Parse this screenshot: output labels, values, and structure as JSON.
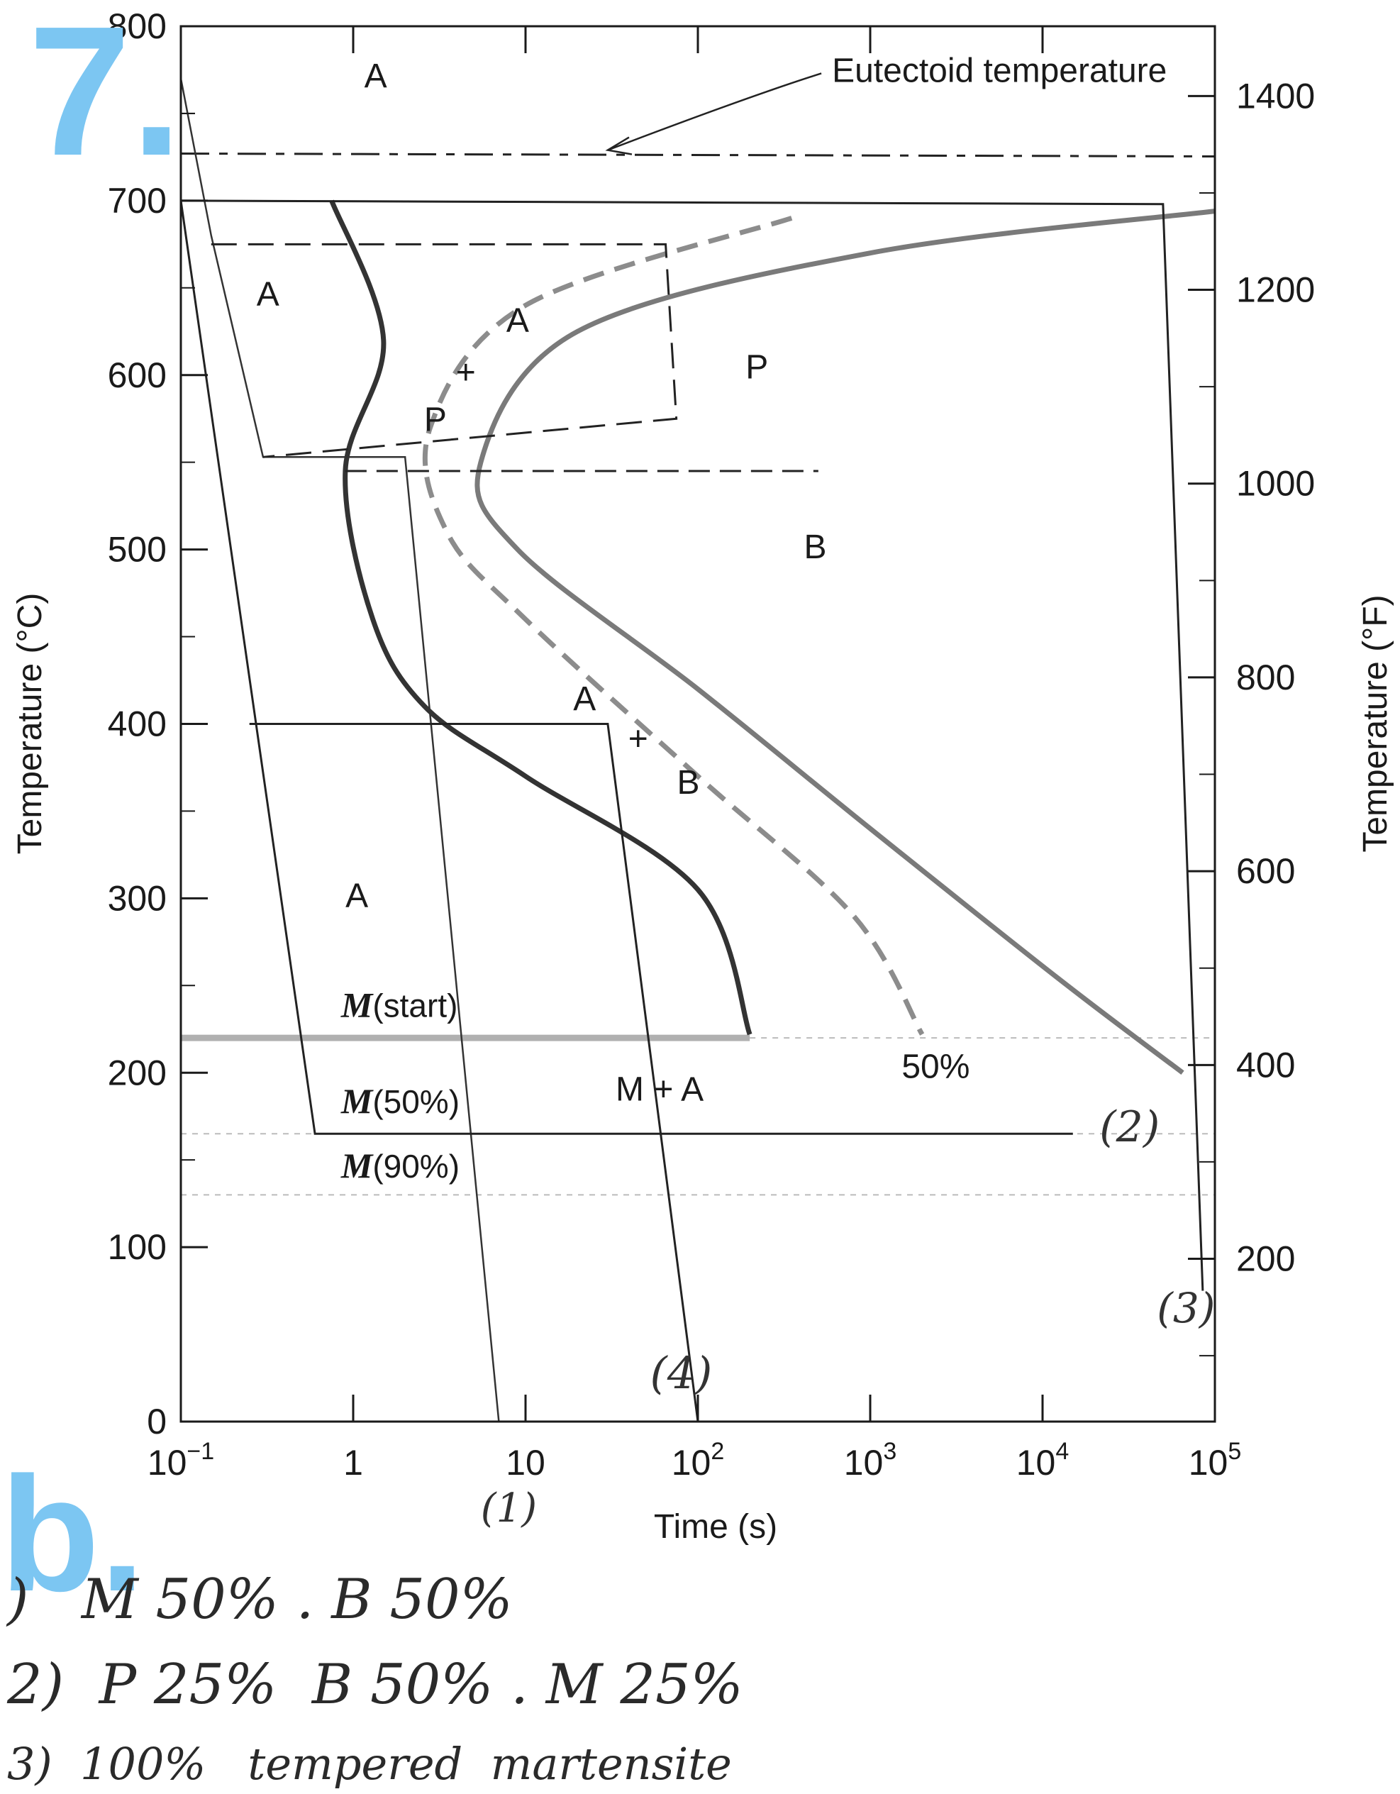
{
  "chart_data": {
    "type": "line",
    "x_axis": {
      "label": "Time (s)",
      "scale": "log",
      "range": [
        0.1,
        100000
      ],
      "ticks": [
        {
          "value": 0.1,
          "base": "10",
          "exp": "−1"
        },
        {
          "value": 1,
          "text": "1"
        },
        {
          "value": 10,
          "text": "10"
        },
        {
          "value": 100,
          "base": "10",
          "exp": "2"
        },
        {
          "value": 1000,
          "base": "10",
          "exp": "3"
        },
        {
          "value": 10000,
          "base": "10",
          "exp": "4"
        },
        {
          "value": 100000,
          "base": "10",
          "exp": "5"
        }
      ]
    },
    "y_axis_left": {
      "label": "Temperature (°C)",
      "range": [
        0,
        800
      ],
      "ticks": [
        "0",
        "100",
        "200",
        "300",
        "400",
        "500",
        "600",
        "700",
        "800"
      ]
    },
    "y_axis_right": {
      "label": "Temperature (°F)",
      "ticks": [
        {
          "value": 200,
          "text": "200"
        },
        {
          "value": 400,
          "text": "400"
        },
        {
          "value": 600,
          "text": "600"
        },
        {
          "value": 800,
          "text": "800"
        },
        {
          "value": 1000,
          "text": "1000"
        },
        {
          "value": 1200,
          "text": "1200"
        },
        {
          "value": 1400,
          "text": "1400"
        }
      ]
    },
    "reference_lines": {
      "eutectoid": {
        "label": "Eutectoid temperature",
        "temperature": 727
      },
      "m_start": {
        "label_m": "M",
        "label_rest": "(start)",
        "temperature": 220
      },
      "m_50": {
        "label_m": "M",
        "label_rest": "(50%)",
        "temperature": 165
      },
      "m_90": {
        "label_m": "M",
        "label_rest": "(90%)",
        "temperature": 130
      }
    },
    "curves": {
      "start": {
        "color": "#333333",
        "points": [
          [
            0.75,
            700
          ],
          [
            1.5,
            620
          ],
          [
            0.9,
            545
          ],
          [
            1.3,
            460
          ],
          [
            2.6,
            410
          ],
          [
            10,
            370
          ],
          [
            100,
            305
          ],
          [
            200,
            222
          ]
        ]
      },
      "fifty": {
        "label": "50%",
        "color": "#8c8c8c",
        "points": [
          [
            350,
            690
          ],
          [
            10,
            640
          ],
          [
            2.8,
            570
          ],
          [
            3.5,
            510
          ],
          [
            10,
            460
          ],
          [
            100,
            370
          ],
          [
            800,
            290
          ],
          [
            2000,
            222
          ]
        ]
      },
      "finish": {
        "color": "#7a7a7a",
        "points": [
          [
            100000,
            694
          ],
          [
            1000,
            670
          ],
          [
            20,
            625
          ],
          [
            5.5,
            550
          ],
          [
            9,
            500
          ],
          [
            100,
            420
          ],
          [
            1000,
            340
          ],
          [
            12000,
            255
          ],
          [
            65000,
            200
          ]
        ]
      }
    },
    "regions": {
      "a_top": "A",
      "a_mid": "A",
      "a_low": "A",
      "p": "P",
      "b": "B",
      "ap_a": "A",
      "ap_plus": "+",
      "ap_p": "P",
      "ab_a": "A",
      "ab_plus": "+",
      "ab_b": "B",
      "ma": "M + A"
    },
    "paths": {
      "p1": {
        "label": "(1)",
        "points": [
          [
            0.1,
            770
          ],
          [
            0.15,
            680
          ],
          [
            0.3,
            553
          ],
          [
            2,
            553
          ],
          [
            7,
            0
          ]
        ]
      },
      "p2": {
        "label": "(2)",
        "points": [
          [
            0.1,
            700
          ],
          [
            0.6,
            165
          ],
          [
            15000,
            165
          ]
        ]
      },
      "p3": {
        "label": "(3)",
        "points": [
          [
            0.1,
            700
          ],
          [
            50000,
            698
          ],
          [
            85000,
            75
          ]
        ]
      },
      "p4": {
        "label": "(4)",
        "points": [
          [
            0.25,
            400
          ],
          [
            30,
            400
          ],
          [
            100,
            0
          ]
        ]
      },
      "p5": {
        "points": [
          [
            0.15,
            675
          ],
          [
            65,
            675
          ],
          [
            75,
            575
          ],
          [
            0.3,
            553
          ]
        ]
      },
      "p6": {
        "points": [
          [
            0.9,
            545
          ],
          [
            500,
            545
          ]
        ]
      }
    }
  },
  "annotations": {
    "problem_number": "7.",
    "part_label": "b.",
    "answers": [
      {
        "text": ")   M 50% . B 50%"
      },
      {
        "text": "2)  P 25%  B 50% . M 25%"
      },
      {
        "text": "3)  100%   tempered  martensite"
      }
    ]
  }
}
